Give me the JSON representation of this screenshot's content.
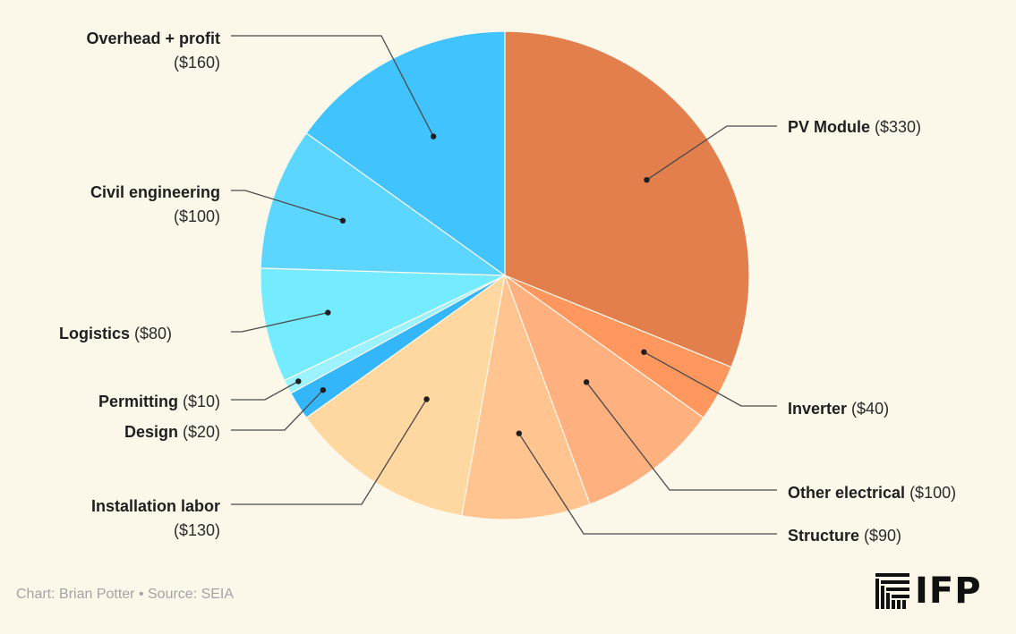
{
  "chart_data": {
    "type": "pie",
    "slices": [
      {
        "label": "PV Module",
        "value_label": "($330)",
        "value": 330,
        "color": "#E27F4D"
      },
      {
        "label": "Inverter",
        "value_label": "($40)",
        "value": 40,
        "color": "#FF975F"
      },
      {
        "label": "Other electrical",
        "value_label": "($100)",
        "value": 100,
        "color": "#FFB07F"
      },
      {
        "label": "Structure",
        "value_label": "($90)",
        "value": 90,
        "color": "#FFC48F"
      },
      {
        "label": "Installation labor",
        "value_label": "($130)",
        "value": 130,
        "color": "#FFD7A0"
      },
      {
        "label": "Design",
        "value_label": "($20)",
        "value": 20,
        "color": "#34B7FA"
      },
      {
        "label": "Permitting",
        "value_label": "($10)",
        "value": 10,
        "color": "#9DF2FF"
      },
      {
        "label": "Logistics",
        "value_label": "($80)",
        "value": 80,
        "color": "#75EBFF"
      },
      {
        "label": "Civil engineering",
        "value_label": "($100)",
        "value": 100,
        "color": "#5DD6FF"
      },
      {
        "label": "Overhead + profit",
        "value_label": "($160)",
        "value": 160,
        "color": "#41C3FE"
      }
    ]
  },
  "footer": {
    "credit": "Chart: Brian Potter • Source: SEIA"
  },
  "logo": {
    "text": "IFP"
  }
}
